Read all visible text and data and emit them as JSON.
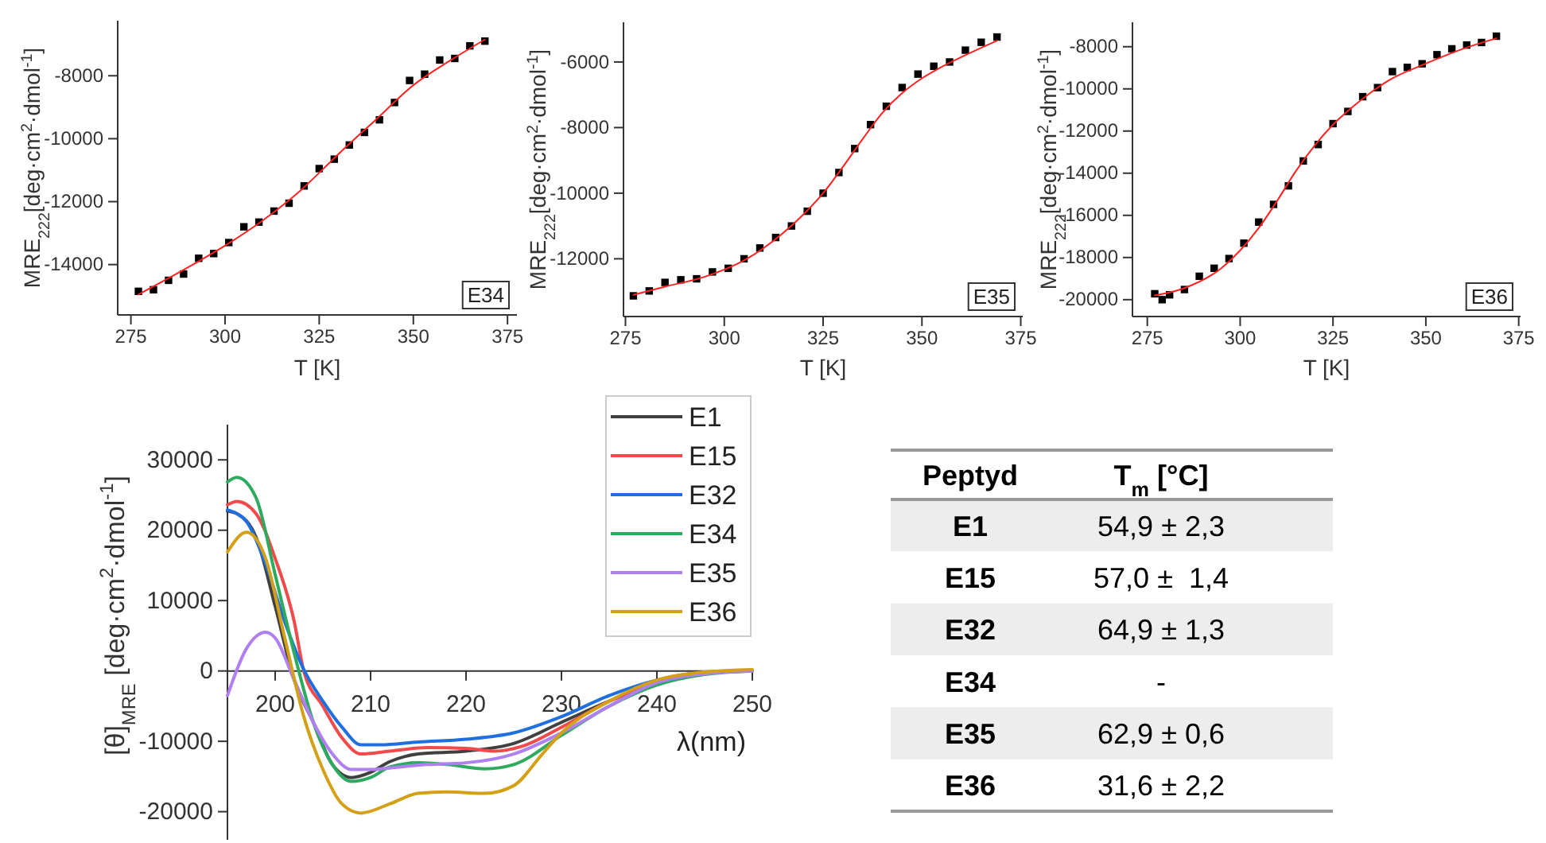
{
  "chart_data": [
    {
      "type": "scatter",
      "xlabel": "T [K]",
      "ylabel": "MRE$_{222}$[deg·cm$^{2}$·dmol$^{-1}$]",
      "annotations": [
        "E34"
      ],
      "grid": false,
      "xlim": [
        271.5,
        377.5
      ],
      "xticks": [
        275,
        300,
        325,
        350,
        375
      ],
      "ylim": [
        -15600,
        -6250
      ],
      "yticks": [
        -14000,
        -12000,
        -10000,
        -8000
      ],
      "series": [
        {
          "type": "scatter",
          "marker": "square",
          "color": "#000000",
          "x": [
            277,
            281,
            285,
            289,
            293,
            297,
            301,
            305,
            309,
            313,
            317,
            321,
            325,
            329,
            333,
            337,
            341,
            345,
            349,
            353,
            357,
            361,
            365,
            369
          ],
          "values": [
            -14850,
            -14800,
            -14500,
            -14300,
            -13800,
            -13650,
            -13300,
            -12800,
            -12650,
            -12300,
            -12050,
            -11500,
            -10950,
            -10650,
            -10200,
            -9800,
            -9400,
            -8850,
            -8150,
            -7950,
            -7500,
            -7450,
            -7050,
            -6900
          ]
        },
        {
          "type": "line",
          "color": "#ff2020",
          "x": [
            277,
            290,
            300,
            310,
            320,
            330,
            340,
            350,
            360,
            369
          ],
          "values": [
            -14950,
            -14100,
            -13400,
            -12600,
            -11650,
            -10500,
            -9400,
            -8300,
            -7500,
            -6850
          ]
        }
      ]
    },
    {
      "type": "scatter",
      "xlabel": "T [K]",
      "ylabel": "MRE$_{222}$[deg·cm$^{2}$·dmol$^{-1}$]",
      "annotations": [
        "E35"
      ],
      "grid": false,
      "xlim": [
        274.5,
        375.5
      ],
      "xticks": [
        275,
        300,
        325,
        350,
        375
      ],
      "ylim": [
        -13760,
        -4790
      ],
      "yticks": [
        -12000,
        -10000,
        -8000,
        -6000
      ],
      "series": [
        {
          "type": "scatter",
          "marker": "square",
          "color": "#000000",
          "x": [
            277,
            281,
            285,
            289,
            293,
            297,
            301,
            305,
            309,
            313,
            317,
            321,
            325,
            329,
            333,
            337,
            341,
            345,
            349,
            353,
            357,
            361,
            365,
            369
          ],
          "values": [
            -13130,
            -12980,
            -12720,
            -12640,
            -12610,
            -12400,
            -12290,
            -12000,
            -11670,
            -11350,
            -11000,
            -10550,
            -10000,
            -9370,
            -8640,
            -7910,
            -7350,
            -6780,
            -6370,
            -6130,
            -6000,
            -5640,
            -5400,
            -5240
          ]
        },
        {
          "type": "line",
          "color": "#ff2020",
          "x": [
            277,
            285,
            295,
            305,
            315,
            320,
            325,
            330,
            335,
            340,
            345,
            350,
            355,
            360,
            369
          ],
          "values": [
            -13100,
            -12850,
            -12550,
            -12050,
            -11200,
            -10650,
            -10000,
            -9200,
            -8350,
            -7550,
            -6950,
            -6500,
            -6150,
            -5850,
            -5350
          ]
        }
      ]
    },
    {
      "type": "scatter",
      "xlabel": "T [K]",
      "ylabel": "MRE$_{222}$[deg·cm$^{2}$·dmol$^{-1}$]",
      "annotations": [
        "E36"
      ],
      "grid": false,
      "xlim": [
        271,
        375.5
      ],
      "xticks": [
        275,
        300,
        325,
        350,
        375
      ],
      "ylim": [
        -20800,
        -6840
      ],
      "yticks": [
        -20000,
        -18000,
        -16000,
        -14000,
        -12000,
        -10000,
        -8000
      ],
      "series": [
        {
          "type": "scatter",
          "marker": "square",
          "color": "#000000",
          "x": [
            277,
            279,
            281,
            285,
            289,
            293,
            297,
            301,
            305,
            309,
            313,
            317,
            321,
            325,
            329,
            333,
            337,
            341,
            345,
            349,
            353,
            357,
            361,
            365,
            369
          ],
          "values": [
            -19720,
            -20000,
            -19770,
            -19520,
            -18890,
            -18510,
            -18050,
            -17320,
            -16320,
            -15480,
            -14600,
            -13420,
            -12640,
            -11650,
            -11070,
            -10370,
            -9940,
            -9180,
            -8980,
            -8810,
            -8380,
            -8100,
            -7920,
            -7800,
            -7500
          ]
        },
        {
          "type": "line",
          "color": "#ff2020",
          "x": [
            277,
            285,
            295,
            305,
            310,
            315,
            320,
            325,
            330,
            335,
            340,
            350,
            360,
            369
          ],
          "values": [
            -19800,
            -19450,
            -18500,
            -16600,
            -15300,
            -13900,
            -12700,
            -11700,
            -10900,
            -10200,
            -9600,
            -8800,
            -8100,
            -7600
          ]
        }
      ]
    },
    {
      "type": "line",
      "xlabel": "λ(nm)",
      "ylabel": "[θ]$_{MRE}$ [deg·cm$^{2}$·dmol$^{-1}$]",
      "legend": "top right",
      "grid": false,
      "xlim": [
        195,
        250
      ],
      "xticks": [
        200,
        210,
        220,
        230,
        240,
        250
      ],
      "ylim": [
        -24000,
        35000
      ],
      "yticks": [
        -20000,
        -10000,
        0,
        10000,
        20000,
        30000
      ],
      "series": [
        {
          "name": "E1",
          "color": "#404040",
          "x": [
            195,
            196,
            198,
            200,
            202,
            204,
            206,
            208,
            210,
            212,
            215,
            220,
            225,
            230,
            235,
            240,
            245,
            250
          ],
          "values": [
            22700,
            22350,
            19000,
            9200,
            -1300,
            -7300,
            -13300,
            -15150,
            -14400,
            -12900,
            -11800,
            -11400,
            -10300,
            -7300,
            -4300,
            -1650,
            -150,
            0
          ]
        },
        {
          "name": "E15",
          "color": "#f04a4a",
          "x": [
            195,
            196,
            198,
            200,
            202,
            203,
            205,
            207,
            209,
            212,
            216,
            220,
            223,
            226,
            230,
            235,
            240,
            245,
            250
          ],
          "values": [
            23600,
            24100,
            22350,
            16000,
            7000,
            0,
            -5000,
            -9500,
            -11800,
            -11400,
            -10900,
            -11000,
            -11400,
            -10650,
            -8000,
            -4300,
            -1650,
            -300,
            0
          ]
        },
        {
          "name": "E32",
          "color": "#1f6fe0",
          "x": [
            195,
            197,
            199,
            201,
            203,
            205,
            207,
            209,
            211,
            215,
            220,
            225,
            230,
            235,
            240,
            245,
            250
          ],
          "values": [
            22900,
            21200,
            15200,
            7000,
            200,
            -4300,
            -8000,
            -10500,
            -10500,
            -10100,
            -9700,
            -8800,
            -6500,
            -3500,
            -1300,
            -200,
            0
          ]
        },
        {
          "name": "E34",
          "color": "#2eaa5e",
          "x": [
            195,
            196,
            198,
            200,
            202,
            204,
            206,
            208,
            210,
            212,
            215,
            218,
            222,
            225,
            230,
            235,
            240,
            245,
            250
          ],
          "values": [
            26850,
            27500,
            24600,
            13700,
            2500,
            -7300,
            -13300,
            -15700,
            -15150,
            -13650,
            -13050,
            -13300,
            -13900,
            -13300,
            -9150,
            -5000,
            -2000,
            -500,
            0
          ]
        },
        {
          "name": "E35",
          "color": "#b07ff0",
          "x": [
            195,
            197,
            199,
            200,
            202,
            204,
            206,
            208,
            210,
            213,
            216,
            220,
            225,
            230,
            235,
            240,
            245,
            250
          ],
          "values": [
            -3500,
            3200,
            5500,
            4700,
            -1300,
            -7300,
            -11800,
            -14000,
            -14000,
            -13650,
            -13300,
            -13050,
            -11800,
            -8800,
            -5000,
            -1650,
            -400,
            0
          ]
        },
        {
          "name": "E36",
          "color": "#d4a017",
          "x": [
            195,
            197,
            199,
            201,
            203,
            205,
            207,
            209,
            212,
            215,
            218,
            222,
            225,
            228,
            230,
            235,
            240,
            245,
            250
          ],
          "values": [
            16900,
            19700,
            16000,
            4700,
            -6500,
            -14000,
            -18900,
            -20200,
            -18900,
            -17400,
            -17200,
            -17400,
            -16300,
            -11800,
            -8800,
            -4300,
            -1300,
            -150,
            200
          ]
        }
      ]
    },
    {
      "type": "other",
      "annotations": [
        "Peptyd",
        "T$_{m}$ [°C]"
      ],
      "categories": [
        "E1",
        "E15",
        "E32",
        "E34",
        "E35",
        "E36"
      ],
      "value_labels": [
        "54,9 ± 2,3",
        "57,0 ±  1,4",
        "64,9 ± 1,3",
        "-",
        "62,9 ± 0,6",
        "31,6 ± 2,2"
      ]
    }
  ]
}
